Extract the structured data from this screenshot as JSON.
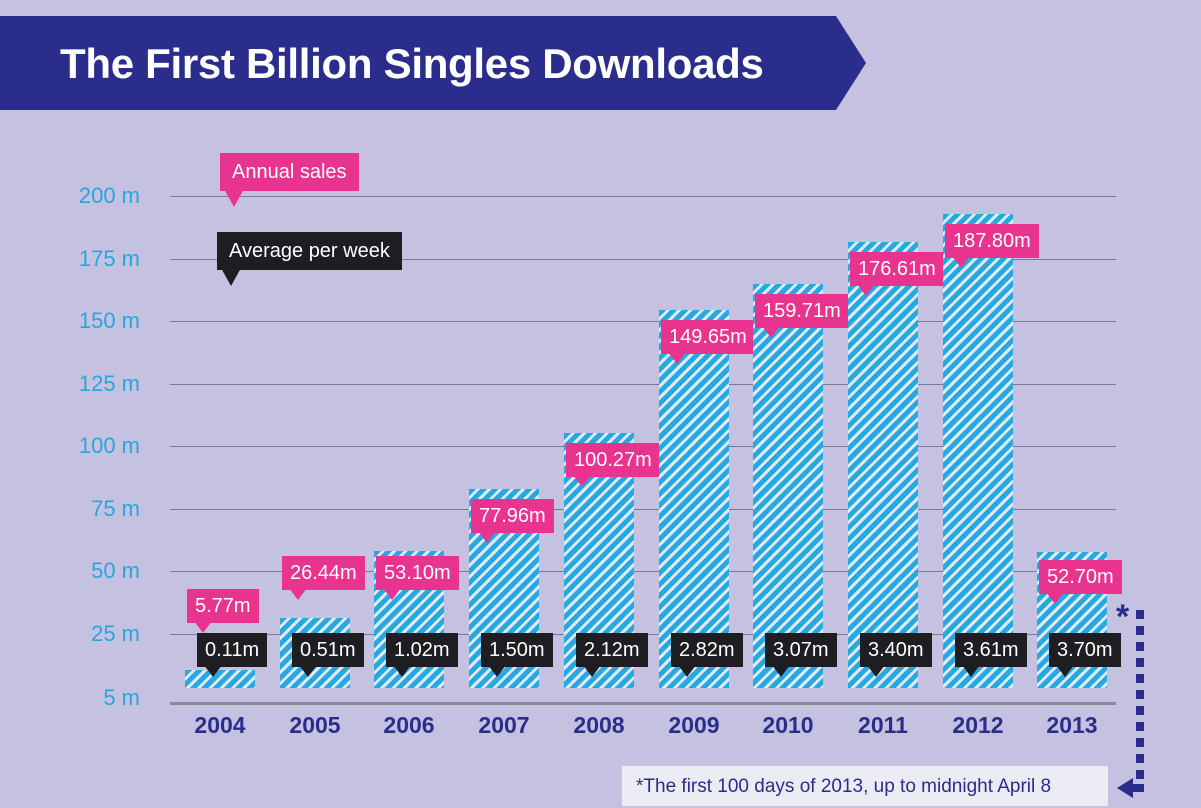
{
  "title": "The First Billion Singles Downloads",
  "legend": {
    "annual": "Annual sales",
    "weekly": "Average per week"
  },
  "colors": {
    "background": "#c4c2e0",
    "banner": "#2b2d8c",
    "bar": "#29a7e0",
    "annual_tag": "#e8338f",
    "weekly_tag": "#1e1e22",
    "axis_text": "#27a6de",
    "year_text": "#2b2d8c"
  },
  "footnote": "*The first 100 days of 2013, up to midnight April 8",
  "asterisk": "*",
  "chart_data": {
    "type": "bar",
    "title": "The First Billion Singles Downloads",
    "categories": [
      "2004",
      "2005",
      "2006",
      "2007",
      "2008",
      "2009",
      "2010",
      "2011",
      "2012",
      "2013"
    ],
    "series": [
      {
        "name": "Annual sales",
        "values": [
          5.77,
          26.44,
          53.1,
          77.96,
          100.27,
          149.65,
          159.71,
          176.61,
          187.8,
          52.7
        ],
        "labels": [
          "5.77m",
          "26.44m",
          "53.10m",
          "77.96m",
          "100.27m",
          "149.65m",
          "159.71m",
          "176.61m",
          "187.80m",
          "52.70m"
        ]
      },
      {
        "name": "Average per week",
        "values": [
          0.11,
          0.51,
          1.02,
          1.5,
          2.12,
          2.82,
          3.07,
          3.4,
          3.61,
          3.7
        ],
        "labels": [
          "0.11m",
          "0.51m",
          "1.02m",
          "1.50m",
          "2.12m",
          "2.82m",
          "3.07m",
          "3.40m",
          "3.61m",
          "3.70m"
        ]
      }
    ],
    "yticks": [
      "5 m",
      "25 m",
      "50 m",
      "75 m",
      "100 m",
      "125 m",
      "150 m",
      "175 m",
      "200 m"
    ],
    "ytick_values": [
      5,
      25,
      50,
      75,
      100,
      125,
      150,
      175,
      200
    ],
    "ylim": [
      0,
      200
    ],
    "grid": true,
    "legend_position": "top-left"
  }
}
